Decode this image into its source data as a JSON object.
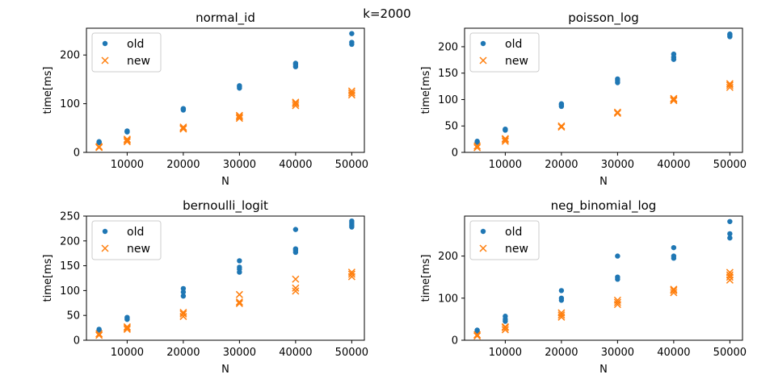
{
  "suptitle": "k=2000",
  "colors": {
    "old": "#1f77b4",
    "new": "#ff7f0e"
  },
  "chart_data": [
    {
      "type": "scatter",
      "title": "normal_id",
      "xlabel": "N",
      "ylabel": "time[ms]",
      "xlim": [
        2750,
        52250
      ],
      "ylim": [
        0,
        255
      ],
      "xticks": [
        10000,
        20000,
        30000,
        40000,
        50000
      ],
      "yticks": [
        0,
        100,
        200
      ],
      "legend": {
        "placement": "upper-left",
        "entries": [
          "old",
          "new"
        ]
      },
      "series": [
        {
          "name": "old",
          "marker": "dot",
          "points": [
            [
              5000,
              20
            ],
            [
              5000,
              22
            ],
            [
              5000,
              21
            ],
            [
              10000,
              42
            ],
            [
              10000,
              44
            ],
            [
              10000,
              43
            ],
            [
              20000,
              87
            ],
            [
              20000,
              89
            ],
            [
              20000,
              90
            ],
            [
              30000,
              132
            ],
            [
              30000,
              135
            ],
            [
              30000,
              137
            ],
            [
              40000,
              176
            ],
            [
              40000,
              180
            ],
            [
              40000,
              183
            ],
            [
              50000,
              222
            ],
            [
              50000,
              226
            ],
            [
              50000,
              244
            ]
          ]
        },
        {
          "name": "new",
          "marker": "x",
          "points": [
            [
              5000,
              10
            ],
            [
              5000,
              12
            ],
            [
              10000,
              22
            ],
            [
              10000,
              25
            ],
            [
              10000,
              27
            ],
            [
              20000,
              48
            ],
            [
              20000,
              50
            ],
            [
              20000,
              52
            ],
            [
              30000,
              70
            ],
            [
              30000,
              73
            ],
            [
              30000,
              76
            ],
            [
              40000,
              96
            ],
            [
              40000,
              100
            ],
            [
              40000,
              103
            ],
            [
              50000,
              118
            ],
            [
              50000,
              122
            ],
            [
              50000,
              126
            ]
          ]
        }
      ]
    },
    {
      "type": "scatter",
      "title": "poisson_log",
      "xlabel": "N",
      "ylabel": "time[ms]",
      "xlim": [
        2750,
        52250
      ],
      "ylim": [
        0,
        235
      ],
      "xticks": [
        10000,
        20000,
        30000,
        40000,
        50000
      ],
      "yticks": [
        0,
        50,
        100,
        150,
        200
      ],
      "legend": {
        "placement": "upper-left",
        "entries": [
          "old",
          "new"
        ]
      },
      "series": [
        {
          "name": "old",
          "marker": "dot",
          "points": [
            [
              5000,
              19
            ],
            [
              5000,
              21
            ],
            [
              10000,
              42
            ],
            [
              10000,
              44
            ],
            [
              10000,
              43
            ],
            [
              20000,
              87
            ],
            [
              20000,
              90
            ],
            [
              20000,
              92
            ],
            [
              30000,
              132
            ],
            [
              30000,
              136
            ],
            [
              30000,
              139
            ],
            [
              40000,
              176
            ],
            [
              40000,
              180
            ],
            [
              40000,
              186
            ],
            [
              50000,
              219
            ],
            [
              50000,
              222
            ],
            [
              50000,
              224
            ]
          ]
        },
        {
          "name": "new",
          "marker": "x",
          "points": [
            [
              5000,
              9
            ],
            [
              5000,
              12
            ],
            [
              10000,
              21
            ],
            [
              10000,
              24
            ],
            [
              10000,
              26
            ],
            [
              20000,
              48
            ],
            [
              20000,
              50
            ],
            [
              30000,
              74
            ],
            [
              30000,
              76
            ],
            [
              40000,
              98
            ],
            [
              40000,
              100
            ],
            [
              40000,
              102
            ],
            [
              50000,
              123
            ],
            [
              50000,
              127
            ],
            [
              50000,
              130
            ]
          ]
        }
      ]
    },
    {
      "type": "scatter",
      "title": "bernoulli_logit",
      "xlabel": "N",
      "ylabel": "time[ms]",
      "xlim": [
        2750,
        52250
      ],
      "ylim": [
        0,
        250
      ],
      "xticks": [
        10000,
        20000,
        30000,
        40000,
        50000
      ],
      "yticks": [
        0,
        50,
        100,
        150,
        200,
        250
      ],
      "legend": {
        "placement": "upper-left",
        "entries": [
          "old",
          "new"
        ]
      },
      "series": [
        {
          "name": "old",
          "marker": "dot",
          "points": [
            [
              5000,
              20
            ],
            [
              5000,
              22
            ],
            [
              10000,
              42
            ],
            [
              10000,
              44
            ],
            [
              10000,
              46
            ],
            [
              20000,
              89
            ],
            [
              20000,
              97
            ],
            [
              20000,
              104
            ],
            [
              30000,
              137
            ],
            [
              30000,
              143
            ],
            [
              30000,
              147
            ],
            [
              30000,
              160
            ],
            [
              40000,
              177
            ],
            [
              40000,
              181
            ],
            [
              40000,
              184
            ],
            [
              40000,
              223
            ],
            [
              50000,
              228
            ],
            [
              50000,
              232
            ],
            [
              50000,
              236
            ],
            [
              50000,
              240
            ]
          ]
        },
        {
          "name": "new",
          "marker": "x",
          "points": [
            [
              5000,
              10
            ],
            [
              5000,
              13
            ],
            [
              10000,
              22
            ],
            [
              10000,
              25
            ],
            [
              10000,
              27
            ],
            [
              20000,
              48
            ],
            [
              20000,
              53
            ],
            [
              20000,
              56
            ],
            [
              30000,
              74
            ],
            [
              30000,
              77
            ],
            [
              30000,
              92
            ],
            [
              40000,
              99
            ],
            [
              40000,
              105
            ],
            [
              40000,
              123
            ],
            [
              50000,
              128
            ],
            [
              50000,
              133
            ],
            [
              50000,
              137
            ]
          ]
        }
      ]
    },
    {
      "type": "scatter",
      "title": "neg_binomial_log",
      "xlabel": "N",
      "ylabel": "time[ms]",
      "xlim": [
        2750,
        52250
      ],
      "ylim": [
        0,
        295
      ],
      "xticks": [
        10000,
        20000,
        30000,
        40000,
        50000
      ],
      "yticks": [
        0,
        100,
        200
      ],
      "legend": {
        "placement": "upper-left",
        "entries": [
          "old",
          "new"
        ]
      },
      "series": [
        {
          "name": "old",
          "marker": "dot",
          "points": [
            [
              5000,
              20
            ],
            [
              5000,
              24
            ],
            [
              10000,
              45
            ],
            [
              10000,
              50
            ],
            [
              10000,
              57
            ],
            [
              20000,
              95
            ],
            [
              20000,
              100
            ],
            [
              20000,
              118
            ],
            [
              30000,
              145
            ],
            [
              30000,
              150
            ],
            [
              30000,
              200
            ],
            [
              40000,
              195
            ],
            [
              40000,
              200
            ],
            [
              40000,
              220
            ],
            [
              50000,
              243
            ],
            [
              50000,
              253
            ],
            [
              50000,
              282
            ]
          ]
        },
        {
          "name": "new",
          "marker": "x",
          "points": [
            [
              5000,
              10
            ],
            [
              5000,
              13
            ],
            [
              10000,
              25
            ],
            [
              10000,
              30
            ],
            [
              10000,
              32
            ],
            [
              20000,
              55
            ],
            [
              20000,
              60
            ],
            [
              20000,
              65
            ],
            [
              30000,
              85
            ],
            [
              30000,
              90
            ],
            [
              30000,
              95
            ],
            [
              40000,
              113
            ],
            [
              40000,
              118
            ],
            [
              40000,
              121
            ],
            [
              50000,
              143
            ],
            [
              50000,
              150
            ],
            [
              50000,
              155
            ],
            [
              50000,
              161
            ]
          ]
        }
      ]
    }
  ]
}
